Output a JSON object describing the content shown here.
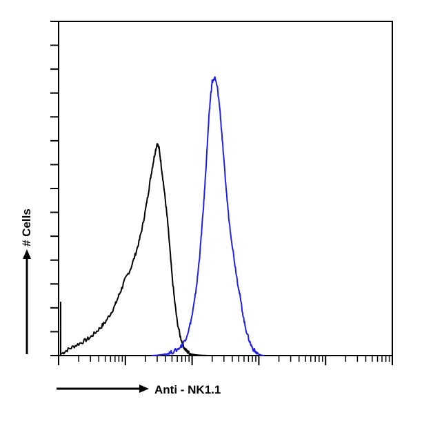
{
  "chart_data": {
    "type": "line",
    "title": "",
    "xlabel": "Anti - NK1.1",
    "ylabel": "# Cells",
    "xscale": "log",
    "xlim": [
      1,
      100000
    ],
    "ylim": [
      0,
      100
    ],
    "grid": false,
    "legend": "none",
    "series": [
      {
        "color": "#000000",
        "x": [
          1.1,
          1.3,
          1.6,
          2,
          2.5,
          3,
          3.6,
          4.3,
          5,
          6,
          7,
          8,
          9,
          10,
          12,
          14,
          16,
          18,
          20,
          22,
          24,
          26,
          28,
          30,
          32,
          34,
          37,
          40,
          43,
          46,
          50,
          55,
          60,
          66,
          72,
          78,
          84,
          90,
          100,
          115,
          130,
          150,
          170,
          200
        ],
        "y": [
          0.5,
          1.5,
          2.5,
          3.5,
          4.5,
          5.5,
          7,
          8.5,
          10,
          12.5,
          15,
          18,
          20.5,
          23,
          26,
          30,
          34,
          38.5,
          43.5,
          48.5,
          53.5,
          57.5,
          61,
          63.5,
          62,
          58,
          52,
          46,
          40,
          33,
          24,
          16,
          10,
          6,
          3.5,
          2,
          1.2,
          0.8,
          0.4,
          0.2,
          0.1,
          0.05,
          0,
          0
        ]
      },
      {
        "color": "#1f1fe6",
        "x": [
          25,
          30,
          36,
          42,
          50,
          60,
          70,
          80,
          90,
          100,
          110,
          120,
          130,
          140,
          150,
          160,
          170,
          180,
          190,
          200,
          220,
          240,
          260,
          280,
          300,
          330,
          360,
          400,
          440,
          480,
          520,
          570,
          620,
          680,
          750,
          820,
          900,
          1000,
          1100,
          1200
        ],
        "y": [
          0,
          0.1,
          0.3,
          0.6,
          1,
          1.8,
          3,
          5,
          8,
          12,
          17,
          23,
          30,
          38,
          46,
          55,
          64,
          72,
          78,
          82,
          83,
          80,
          74,
          66,
          58,
          48,
          40,
          33,
          27,
          22,
          18,
          13,
          9,
          6,
          3.5,
          2,
          1,
          0.4,
          0.1,
          0
        ]
      }
    ]
  }
}
